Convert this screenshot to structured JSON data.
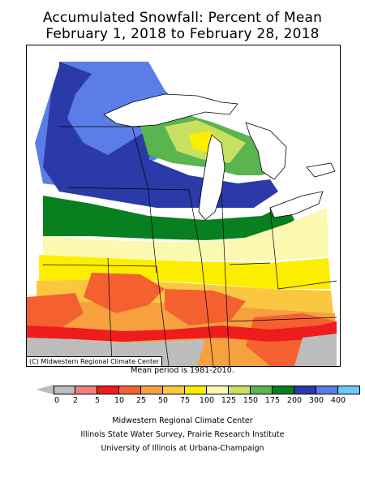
{
  "title": {
    "line1": "Accumulated Snowfall: Percent of Mean",
    "line2": "February 1, 2018 to February 28, 2018"
  },
  "map": {
    "copyright": "(C) Midwestern Regional Climate Center",
    "colors": {
      "gray": "#bdbdbd",
      "pink": "#f08080",
      "red": "#ee1c1c",
      "orange_red": "#f46030",
      "orange": "#f6a040",
      "gold": "#f9c840",
      "yellow": "#fdee00",
      "light_yellow": "#fbf8b0",
      "yellow_green": "#c8e060",
      "green": "#5ab450",
      "dark_green": "#098020",
      "navy": "#2b3aa8",
      "blue": "#5a7de8",
      "light_blue": "#6ec8f8",
      "lake": "#ffffff"
    }
  },
  "mean_note": "Mean period is 1981-2010.",
  "legend": {
    "labels": [
      "0",
      "2",
      "5",
      "10",
      "25",
      "50",
      "75",
      "100",
      "125",
      "150",
      "175",
      "200",
      "300",
      "400"
    ],
    "colors": [
      "#bdbdbd",
      "#f08080",
      "#ee1c1c",
      "#f46030",
      "#f6a040",
      "#f9c840",
      "#fdee00",
      "#fbf8b0",
      "#c8e060",
      "#5ab450",
      "#098020",
      "#2b3aa8",
      "#5a7de8",
      "#6ec8f8"
    ]
  },
  "footer": {
    "line1": "Midwestern Regional Climate Center",
    "line2": "Illinois State Water Survey, Prairie Research Institute",
    "line3": "University of Illinois at Urbana-Champaign"
  }
}
